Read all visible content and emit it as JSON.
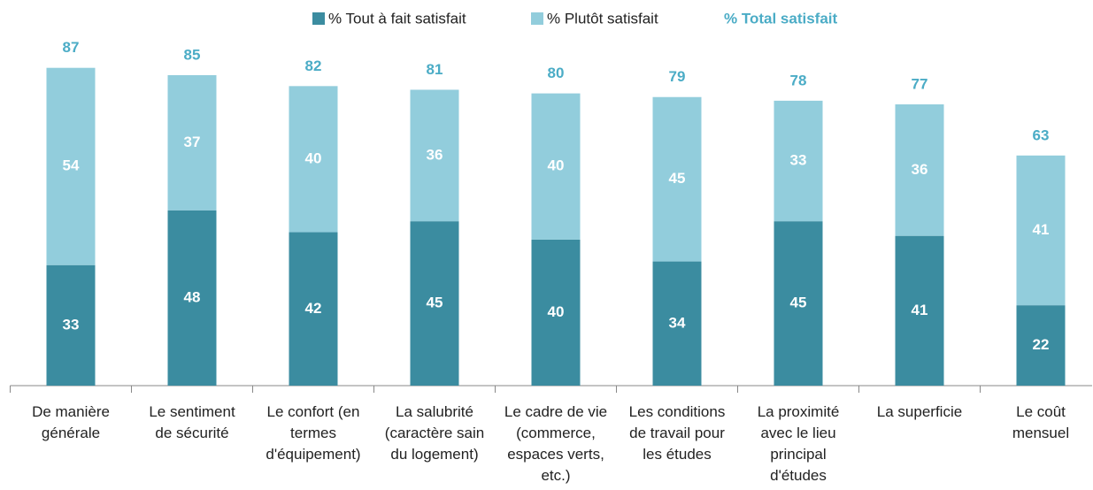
{
  "chart_data": {
    "type": "stacked_bar",
    "categories": [
      "De manière\ngénérale",
      "Le sentiment\nde sécurité",
      "Le confort (en\ntermes\nd'équipement)",
      "La salubrité\n(caractère sain\ndu logement)",
      "Le cadre de vie\n(commerce,\nespaces verts,\netc.)",
      "Les conditions\nde travail pour\nles études",
      "La proximité\navec le lieu\nprincipal\nd'études",
      "La superficie",
      "Le coût\nmensuel"
    ],
    "series": [
      {
        "name": "% Tout à fait satisfait",
        "color": "#3b8ca0",
        "values": [
          33,
          48,
          42,
          45,
          40,
          34,
          45,
          41,
          22
        ]
      },
      {
        "name": "% Plutôt satisfait",
        "color": "#92cddc",
        "values": [
          54,
          37,
          40,
          36,
          40,
          45,
          33,
          36,
          41
        ]
      }
    ],
    "totals": {
      "name": "% Total satisfait",
      "color": "#4bacc6",
      "values": [
        87,
        85,
        82,
        81,
        80,
        79,
        78,
        77,
        63
      ]
    },
    "ylim": [
      0,
      100
    ]
  }
}
